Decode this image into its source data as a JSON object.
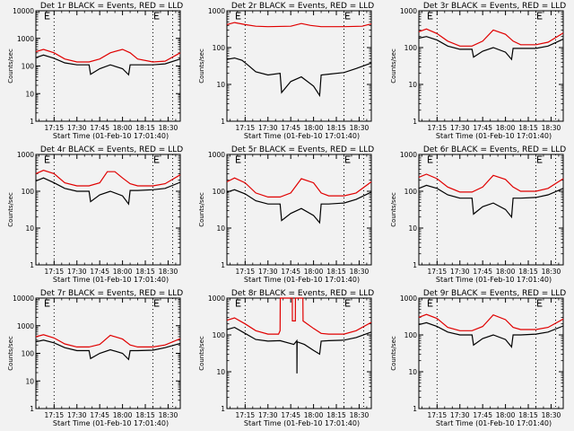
{
  "figure": {
    "xlabel": "Start Time (01-Feb-10 17:01:40)",
    "ylabel": "Counts/sec",
    "x_tick_labels": [
      "17:15",
      "17:30",
      "17:45",
      "18:00",
      "18:15",
      "18:30"
    ],
    "x_tick_minutes": [
      15,
      30,
      45,
      60,
      75,
      90
    ],
    "x_range_minutes": [
      3,
      98
    ],
    "vlines_minutes": [
      15,
      80,
      93
    ],
    "marker_label": "E",
    "colors": {
      "events": "#000000",
      "lld": "#e00000",
      "background": "#f2f2f2"
    },
    "legend": "BLACK = Events, RED = LLD"
  },
  "chart_data": [
    {
      "type": "line",
      "title": "Det 1r BLACK = Events, RED = LLD",
      "ylim": [
        1,
        10000
      ],
      "yscale": "log",
      "y_tick_labels": [
        "1",
        "10",
        "100",
        "1000",
        "10000"
      ],
      "series": [
        {
          "name": "LLD",
          "color": "#e00000",
          "x": [
            3,
            8,
            15,
            22,
            30,
            38,
            45,
            52,
            60,
            65,
            70,
            80,
            88,
            98
          ],
          "values": [
            330,
            400,
            300,
            180,
            140,
            140,
            180,
            300,
            400,
            300,
            180,
            140,
            150,
            300
          ]
        },
        {
          "name": "Events",
          "color": "#000000",
          "x": [
            3,
            8,
            15,
            22,
            30,
            38,
            39,
            45,
            52,
            60,
            64,
            65,
            70,
            80,
            88,
            98
          ],
          "values": [
            200,
            250,
            190,
            130,
            110,
            110,
            50,
            80,
            110,
            80,
            48,
            110,
            110,
            110,
            120,
            180
          ]
        }
      ]
    },
    {
      "type": "line",
      "title": "Det 2r BLACK = Events, RED = LLD",
      "ylim": [
        1,
        1000
      ],
      "yscale": "log",
      "y_tick_labels": [
        "1",
        "10",
        "100",
        "1000"
      ],
      "series": [
        {
          "name": "LLD",
          "color": "#e00000",
          "x": [
            3,
            8,
            15,
            22,
            30,
            45,
            52,
            58,
            65,
            80,
            92,
            98
          ],
          "values": [
            420,
            480,
            420,
            380,
            370,
            380,
            450,
            400,
            370,
            370,
            380,
            440
          ]
        },
        {
          "name": "Events",
          "color": "#000000",
          "x": [
            3,
            8,
            13,
            17,
            22,
            30,
            38,
            39,
            45,
            52,
            60,
            64,
            65,
            70,
            80,
            88,
            98
          ],
          "values": [
            48,
            52,
            45,
            33,
            22,
            18,
            20,
            6,
            12,
            16,
            9,
            5,
            18,
            19,
            21,
            27,
            38
          ]
        }
      ]
    },
    {
      "type": "line",
      "title": "Det 3r BLACK = Events, RED = LLD",
      "ylim": [
        1,
        1000
      ],
      "yscale": "log",
      "y_tick_labels": [
        "1",
        "10",
        "100",
        "1000"
      ],
      "series": [
        {
          "name": "LLD",
          "color": "#e00000",
          "x": [
            3,
            8,
            15,
            22,
            30,
            38,
            45,
            52,
            60,
            65,
            70,
            80,
            88,
            98
          ],
          "values": [
            270,
            320,
            240,
            150,
            110,
            110,
            150,
            300,
            230,
            150,
            120,
            120,
            140,
            250
          ]
        },
        {
          "name": "Events",
          "color": "#000000",
          "x": [
            3,
            8,
            15,
            22,
            30,
            38,
            39,
            45,
            52,
            60,
            64,
            65,
            70,
            80,
            88,
            98
          ],
          "values": [
            180,
            200,
            160,
            110,
            90,
            90,
            55,
            80,
            100,
            75,
            48,
            95,
            95,
            95,
            110,
            170
          ]
        }
      ]
    },
    {
      "type": "line",
      "title": "Det 4r BLACK = Events, RED = LLD",
      "ylim": [
        1,
        1000
      ],
      "yscale": "log",
      "y_tick_labels": [
        "1",
        "10",
        "100",
        "1000"
      ],
      "series": [
        {
          "name": "LLD",
          "color": "#e00000",
          "x": [
            3,
            8,
            15,
            22,
            30,
            38,
            45,
            50,
            55,
            60,
            65,
            70,
            80,
            88,
            98
          ],
          "values": [
            300,
            370,
            300,
            170,
            140,
            140,
            170,
            340,
            340,
            230,
            160,
            140,
            140,
            160,
            280
          ]
        },
        {
          "name": "Events",
          "color": "#000000",
          "x": [
            3,
            8,
            15,
            22,
            30,
            38,
            39,
            45,
            52,
            60,
            64,
            65,
            70,
            80,
            88,
            98
          ],
          "values": [
            190,
            230,
            170,
            120,
            100,
            100,
            52,
            80,
            100,
            75,
            45,
            105,
            105,
            110,
            120,
            175
          ]
        }
      ]
    },
    {
      "type": "line",
      "title": "Det 5r BLACK = Events, RED = LLD",
      "ylim": [
        1,
        1000
      ],
      "yscale": "log",
      "y_tick_labels": [
        "1",
        "10",
        "100",
        "1000"
      ],
      "series": [
        {
          "name": "LLD",
          "color": "#e00000",
          "x": [
            3,
            8,
            15,
            22,
            30,
            38,
            45,
            52,
            60,
            65,
            70,
            80,
            88,
            98
          ],
          "values": [
            180,
            230,
            170,
            90,
            70,
            70,
            90,
            220,
            170,
            90,
            75,
            75,
            90,
            180
          ]
        },
        {
          "name": "Events",
          "color": "#000000",
          "x": [
            3,
            8,
            15,
            22,
            30,
            38,
            39,
            45,
            52,
            60,
            64,
            65,
            70,
            80,
            88,
            98
          ],
          "values": [
            95,
            110,
            85,
            55,
            45,
            45,
            16,
            25,
            34,
            22,
            14,
            45,
            45,
            48,
            60,
            95
          ]
        }
      ]
    },
    {
      "type": "line",
      "title": "Det 6r BLACK = Events, RED = LLD",
      "ylim": [
        1,
        1000
      ],
      "yscale": "log",
      "y_tick_labels": [
        "1",
        "10",
        "100",
        "1000"
      ],
      "series": [
        {
          "name": "LLD",
          "color": "#e00000",
          "x": [
            3,
            8,
            15,
            22,
            30,
            38,
            45,
            52,
            60,
            65,
            70,
            80,
            88,
            98
          ],
          "values": [
            240,
            290,
            220,
            130,
            95,
            95,
            130,
            270,
            210,
            130,
            100,
            100,
            120,
            220
          ]
        },
        {
          "name": "Events",
          "color": "#000000",
          "x": [
            3,
            8,
            15,
            22,
            30,
            38,
            39,
            45,
            52,
            60,
            64,
            65,
            70,
            80,
            88,
            98
          ],
          "values": [
            120,
            145,
            120,
            80,
            65,
            65,
            24,
            38,
            48,
            32,
            20,
            65,
            65,
            68,
            80,
            120
          ]
        }
      ]
    },
    {
      "type": "line",
      "title": "Det 7r BLACK = Events, RED = LLD",
      "ylim": [
        1,
        10000
      ],
      "yscale": "log",
      "y_tick_labels": [
        "1",
        "10",
        "100",
        "1000",
        "10000"
      ],
      "series": [
        {
          "name": "LLD",
          "color": "#e00000",
          "x": [
            3,
            8,
            15,
            22,
            30,
            38,
            45,
            52,
            60,
            65,
            70,
            80,
            88,
            98
          ],
          "values": [
            400,
            470,
            360,
            220,
            170,
            170,
            210,
            450,
            330,
            200,
            170,
            170,
            200,
            340
          ]
        },
        {
          "name": "Events",
          "color": "#000000",
          "x": [
            3,
            8,
            15,
            22,
            30,
            38,
            39,
            45,
            52,
            60,
            64,
            65,
            70,
            80,
            88,
            98
          ],
          "values": [
            260,
            300,
            240,
            160,
            125,
            125,
            65,
            100,
            135,
            100,
            60,
            125,
            125,
            130,
            160,
            230
          ]
        }
      ]
    },
    {
      "type": "line",
      "title": "Det 8r BLACK = Events, RED = LLD",
      "ylim": [
        1,
        1000
      ],
      "yscale": "log",
      "y_tick_labels": [
        "1",
        "10",
        "100",
        "1000"
      ],
      "series": [
        {
          "name": "LLD",
          "color": "#e00000",
          "x": [
            3,
            8,
            15,
            22,
            30,
            37,
            38,
            38.1,
            46,
            46.1,
            48,
            48.1,
            53,
            53.1,
            60,
            65,
            70,
            80,
            88,
            98
          ],
          "values": [
            250,
            290,
            200,
            130,
            105,
            105,
            130,
            1000,
            1000,
            240,
            240,
            1000,
            1000,
            240,
            150,
            110,
            105,
            105,
            130,
            220
          ]
        },
        {
          "name": "Events",
          "color": "#000000",
          "x": [
            3,
            8,
            15,
            22,
            30,
            38,
            47,
            49,
            49.1,
            49.2,
            54,
            60,
            64,
            65,
            70,
            80,
            88,
            98
          ],
          "values": [
            140,
            160,
            110,
            75,
            68,
            70,
            55,
            70,
            9,
            65,
            55,
            38,
            30,
            68,
            70,
            72,
            85,
            120
          ]
        }
      ]
    },
    {
      "type": "line",
      "title": "Det 9r BLACK = Events, RED = LLD",
      "ylim": [
        1,
        1000
      ],
      "yscale": "log",
      "y_tick_labels": [
        "1",
        "10",
        "100",
        "1000"
      ],
      "series": [
        {
          "name": "LLD",
          "color": "#e00000",
          "x": [
            3,
            8,
            15,
            22,
            30,
            38,
            45,
            52,
            60,
            65,
            70,
            80,
            88,
            98
          ],
          "values": [
            300,
            360,
            280,
            160,
            130,
            130,
            170,
            350,
            260,
            160,
            140,
            140,
            160,
            270
          ]
        },
        {
          "name": "Events",
          "color": "#000000",
          "x": [
            3,
            8,
            15,
            22,
            30,
            38,
            39,
            45,
            52,
            60,
            64,
            65,
            70,
            80,
            88,
            98
          ],
          "values": [
            190,
            215,
            170,
            120,
            100,
            100,
            53,
            80,
            100,
            75,
            47,
            100,
            100,
            105,
            120,
            175
          ]
        }
      ]
    }
  ]
}
